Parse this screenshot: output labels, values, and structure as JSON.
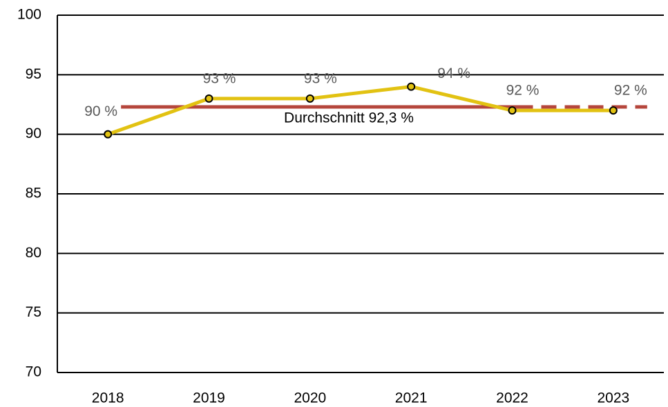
{
  "chart_data": {
    "type": "line",
    "categories": [
      "2018",
      "2019",
      "2020",
      "2021",
      "2022",
      "2023"
    ],
    "series": [
      {
        "color": "#e2c212",
        "values": [
          90,
          93,
          93,
          94,
          92,
          92
        ],
        "value_labels": [
          "90 %",
          "93 %",
          "93 %",
          "94 %",
          "92 %",
          "92 %"
        ]
      }
    ],
    "average": {
      "value": 92.3,
      "label": "Durchschnitt 92,3 %",
      "color": "#b5463c"
    },
    "ylim": [
      70,
      100
    ],
    "yticks": [
      70,
      75,
      80,
      85,
      90,
      95,
      100
    ],
    "grid": true
  }
}
